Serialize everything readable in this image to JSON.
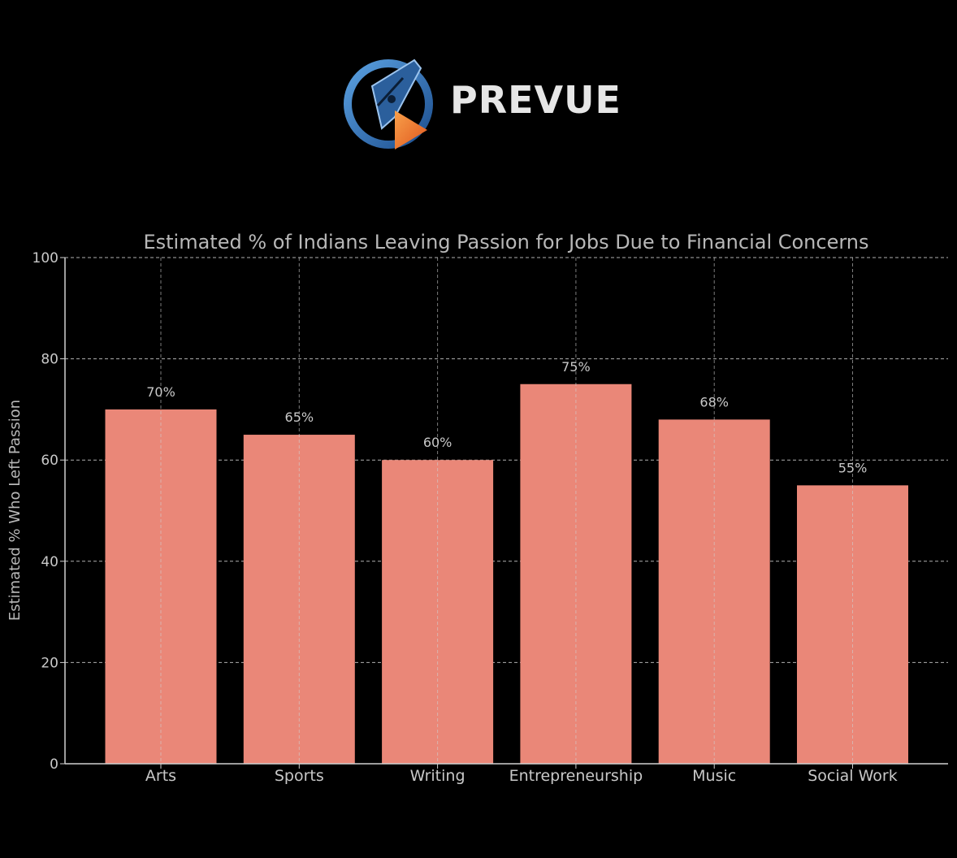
{
  "brand": {
    "name": "PREVUE",
    "colors": {
      "ring": "#2f6fb3",
      "play": "#f07a2a",
      "text": "#e6e6e6"
    }
  },
  "chart_data": {
    "type": "bar",
    "title": "Estimated % of Indians Leaving Passion for Jobs Due to Financial Concerns",
    "xlabel": "",
    "ylabel": "Estimated % Who Left Passion",
    "categories": [
      "Arts",
      "Sports",
      "Writing",
      "Entrepreneurship",
      "Music",
      "Social Work"
    ],
    "values": [
      70,
      65,
      60,
      75,
      68,
      55
    ],
    "data_labels": [
      "70%",
      "65%",
      "60%",
      "75%",
      "68%",
      "55%"
    ],
    "ylim": [
      0,
      100
    ],
    "yticks": [
      0,
      20,
      40,
      60,
      80,
      100
    ],
    "grid": true,
    "colors": {
      "bar": "#ea8778",
      "background": "#000000",
      "grid": "#d0d0d0",
      "axis": "#d0d0d0"
    }
  }
}
